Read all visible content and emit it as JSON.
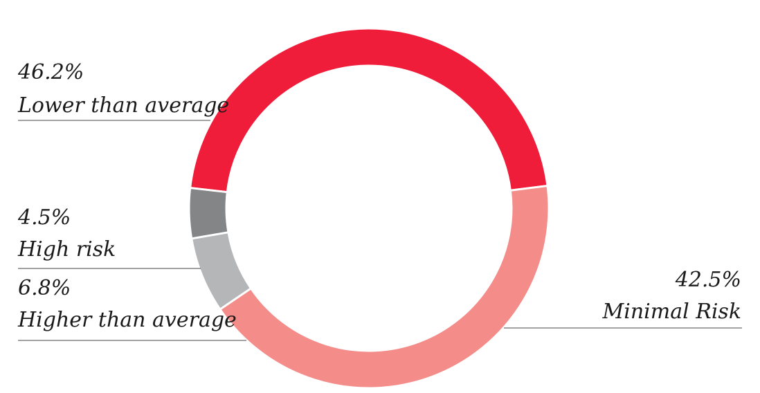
{
  "chart_data": {
    "type": "pie",
    "variant": "donut",
    "slices": [
      {
        "label": "Lower than average",
        "value": 46.2,
        "value_label": "46.2%",
        "color": "#ef1c3a"
      },
      {
        "label": "Minimal Risk",
        "value": 42.5,
        "value_label": "42.5%",
        "color": "#f48c89"
      },
      {
        "label": "Higher than average",
        "value": 6.8,
        "value_label": "6.8%",
        "color": "#b5b6b8"
      },
      {
        "label": "High risk",
        "value": 4.5,
        "value_label": "4.5%",
        "color": "#848587"
      }
    ]
  }
}
